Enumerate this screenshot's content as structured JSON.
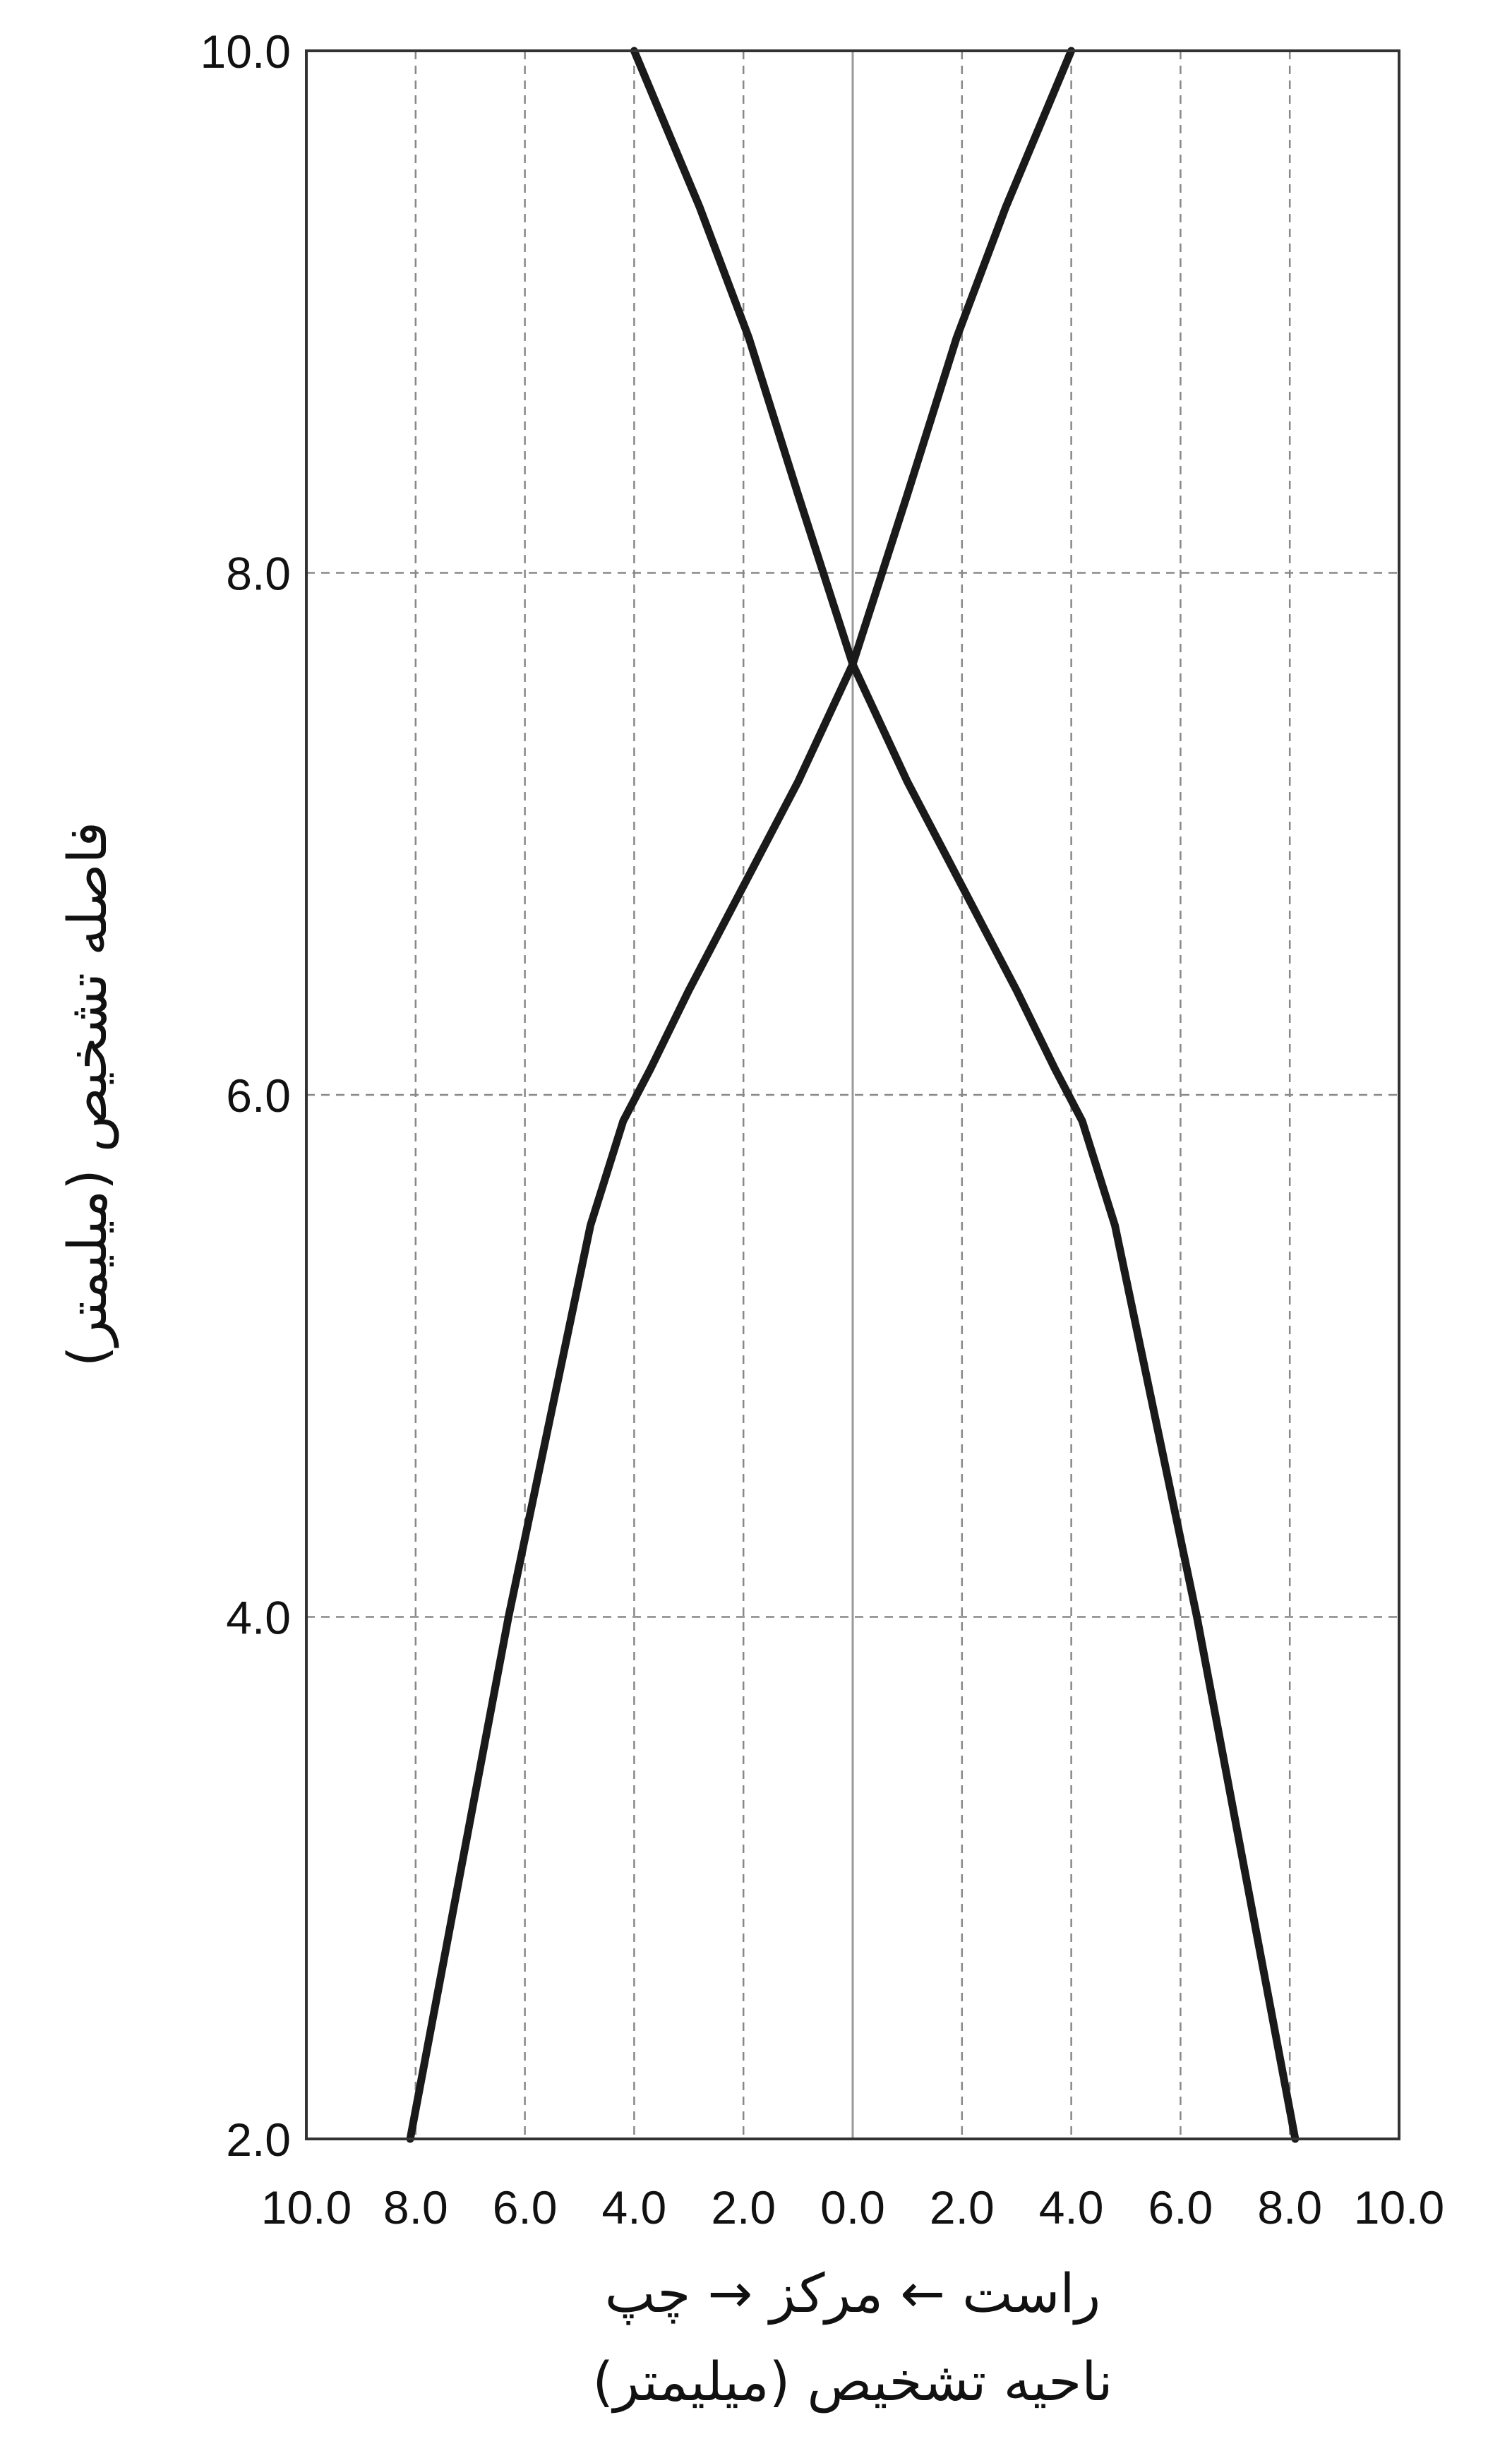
{
  "chart_data": {
    "type": "line",
    "title": "",
    "xlabel_line1": "راست ← مرکز → چپ",
    "xlabel_line2": "ناحیه تشخیص (میلیمتر)",
    "ylabel": "فاصله تشخیص (میلیمتر)",
    "x_tick_values": [
      -10,
      -8,
      -6,
      -4,
      -2,
      0,
      2,
      4,
      6,
      8,
      10
    ],
    "x_tick_labels": [
      "10.0",
      "8.0",
      "6.0",
      "4.0",
      "2.0",
      "0.0",
      "2.0",
      "4.0",
      "6.0",
      "8.0",
      "10.0"
    ],
    "y_tick_values": [
      2,
      4,
      6,
      8,
      10
    ],
    "y_tick_labels": [
      "2.0",
      "4.0",
      "6.0",
      "8.0",
      "10.0"
    ],
    "xlim": [
      -10,
      10
    ],
    "ylim": [
      2,
      10
    ],
    "grid": true,
    "colors": {
      "line": "#1a1a1a",
      "grid": "#888888",
      "axis": "#333333",
      "center": "#999999"
    },
    "series": [
      {
        "x": [
          -8.1,
          -7.2,
          -6.3,
          -5.5,
          -4.8,
          -4.2,
          -3.7,
          -3.0,
          -2.0,
          -1.0,
          0.0,
          1.0,
          1.9,
          2.8,
          4.0
        ],
        "y": [
          2.0,
          3.0,
          4.0,
          4.8,
          5.5,
          5.9,
          6.1,
          6.4,
          6.8,
          7.2,
          7.65,
          8.3,
          8.9,
          9.4,
          10.0
        ]
      },
      {
        "x": [
          8.1,
          7.2,
          6.3,
          5.5,
          4.8,
          4.2,
          3.7,
          3.0,
          2.0,
          1.0,
          0.0,
          -1.0,
          -1.9,
          -2.8,
          -4.0
        ],
        "y": [
          2.0,
          3.0,
          4.0,
          4.8,
          5.5,
          5.9,
          6.1,
          6.4,
          6.8,
          7.2,
          7.65,
          8.3,
          8.9,
          9.4,
          10.0
        ]
      }
    ]
  }
}
